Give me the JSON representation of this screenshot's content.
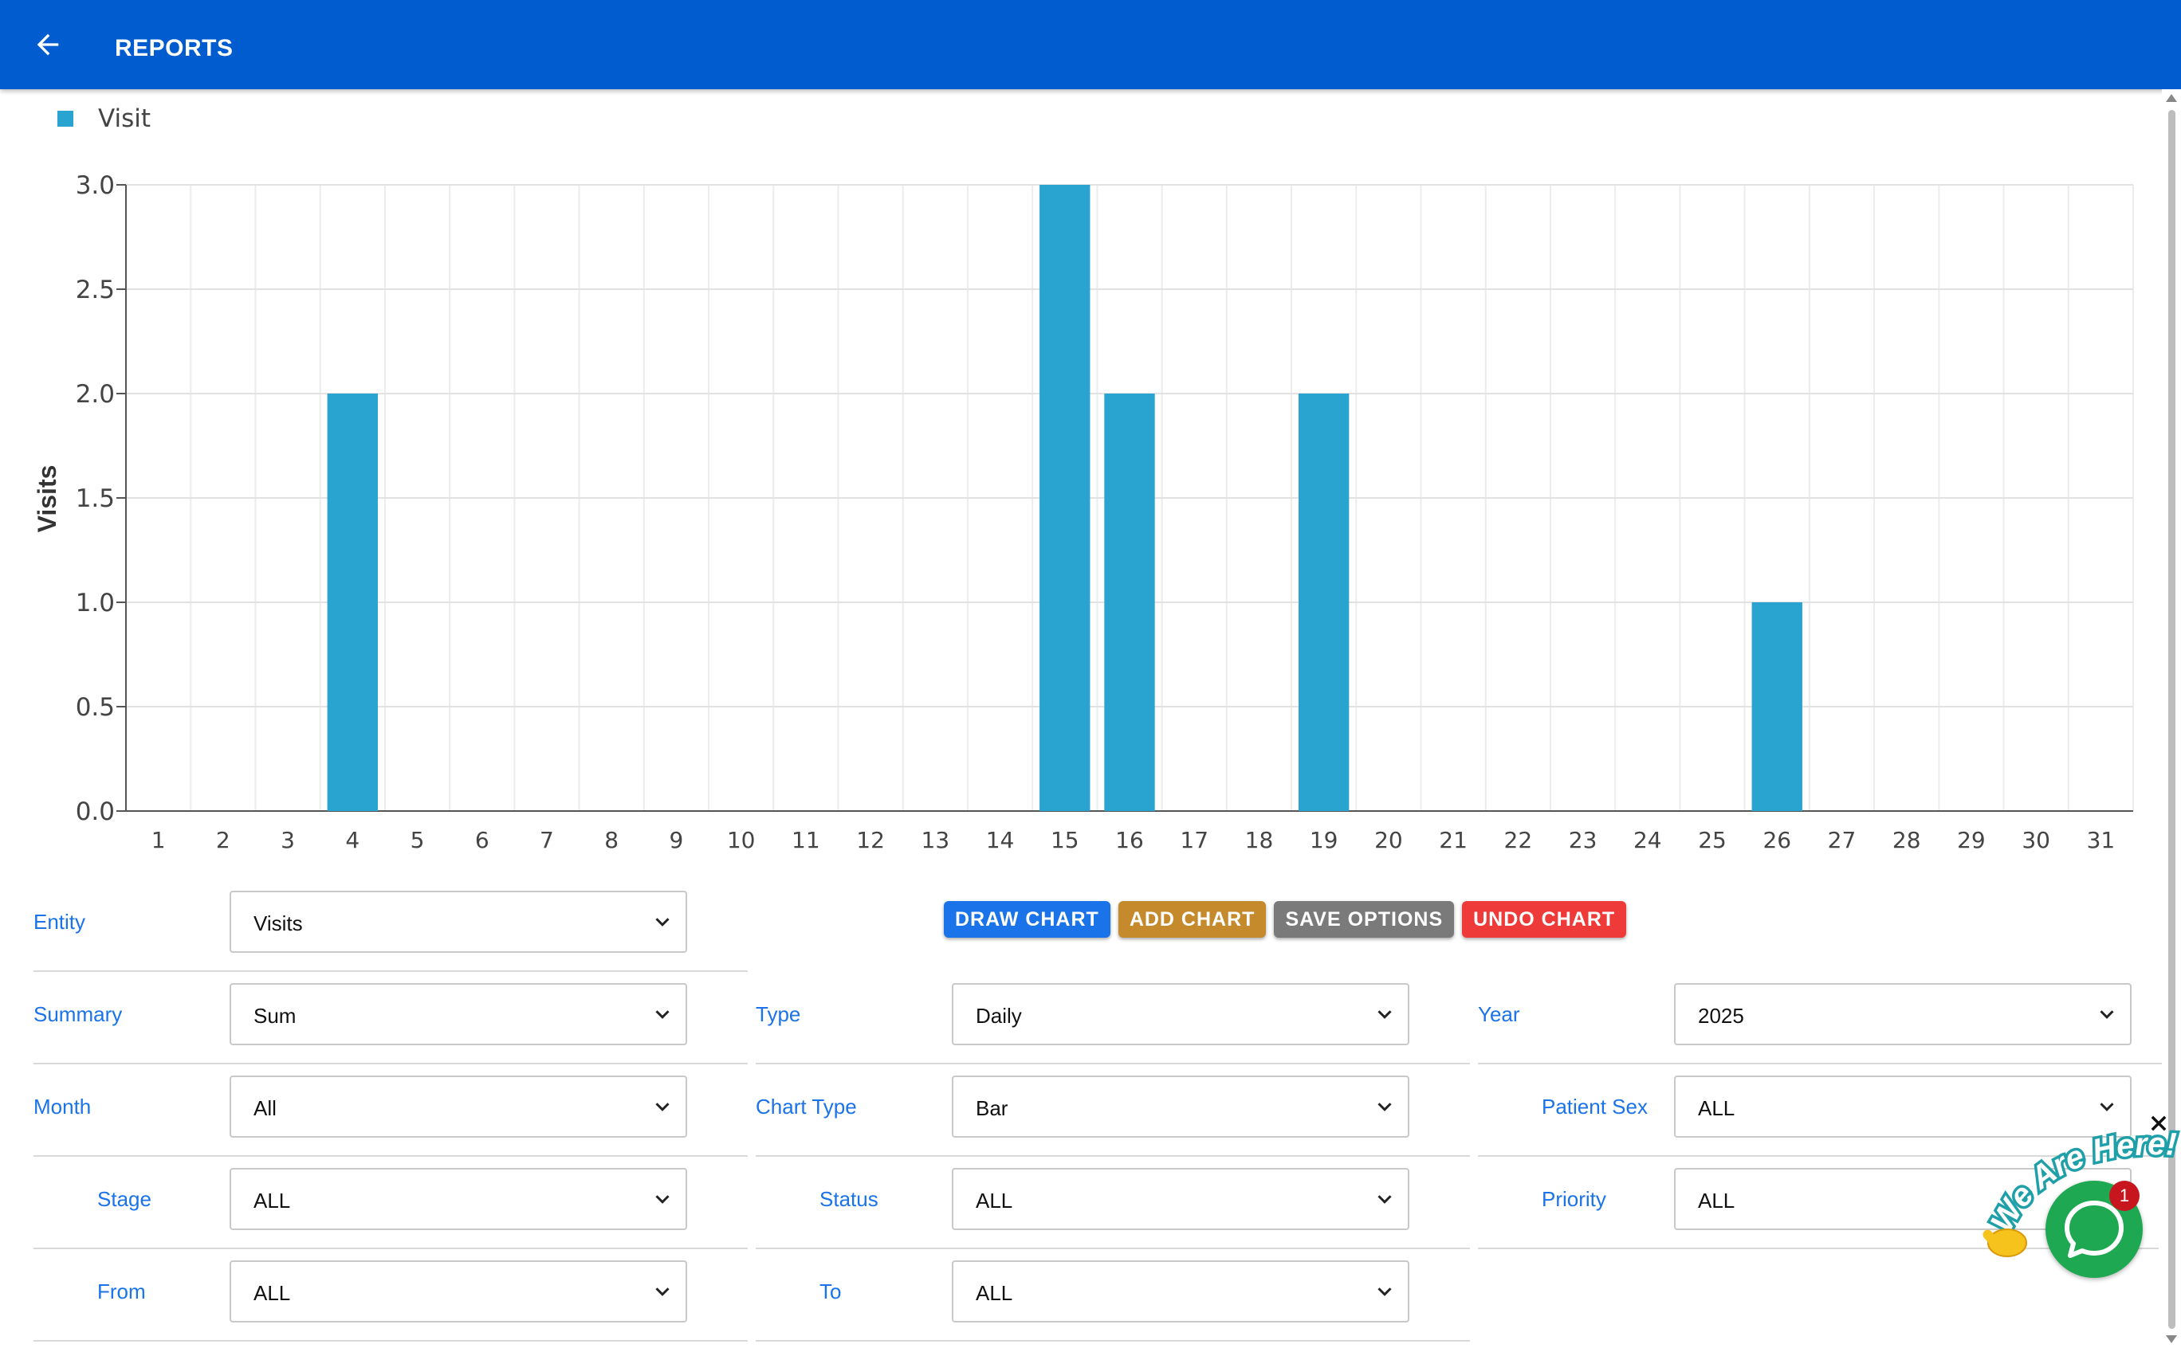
{
  "header": {
    "title": "REPORTS",
    "back_icon": "arrow-left-icon"
  },
  "chart_data": {
    "type": "bar",
    "legend": [
      "Visit"
    ],
    "ylabel": "Visits",
    "xlabel": "",
    "ylim": [
      0,
      3.0
    ],
    "y_ticks": [
      "0.0",
      "0.5",
      "1.0",
      "1.5",
      "2.0",
      "2.5",
      "3.0"
    ],
    "categories": [
      "1",
      "2",
      "3",
      "4",
      "5",
      "6",
      "7",
      "8",
      "9",
      "10",
      "11",
      "12",
      "13",
      "14",
      "15",
      "16",
      "17",
      "18",
      "19",
      "20",
      "21",
      "22",
      "23",
      "24",
      "25",
      "26",
      "27",
      "28",
      "29",
      "30",
      "31"
    ],
    "series": [
      {
        "name": "Visit",
        "values": [
          0,
          0,
          0,
          2,
          0,
          0,
          0,
          0,
          0,
          0,
          0,
          0,
          0,
          0,
          3,
          2,
          0,
          0,
          2,
          0,
          0,
          0,
          0,
          0,
          0,
          1,
          0,
          0,
          0,
          0,
          0
        ]
      }
    ],
    "color": "#29a3cf",
    "grid": true,
    "legend_position": "top-left"
  },
  "buttons": {
    "draw": "DRAW CHART",
    "add": "ADD CHART",
    "save": "SAVE OPTIONS",
    "undo": "UNDO CHART"
  },
  "fields": {
    "entity": {
      "label": "Entity",
      "value": "Visits"
    },
    "summary": {
      "label": "Summary",
      "value": "Sum"
    },
    "month": {
      "label": "Month",
      "value": "All"
    },
    "stage": {
      "label": "Stage",
      "value": "ALL"
    },
    "from": {
      "label": "From",
      "value": "ALL"
    },
    "type": {
      "label": "Type",
      "value": "Daily"
    },
    "chart_type": {
      "label": "Chart Type",
      "value": "Bar"
    },
    "status": {
      "label": "Status",
      "value": "ALL"
    },
    "to": {
      "label": "To",
      "value": "ALL"
    },
    "year": {
      "label": "Year",
      "value": "2025"
    },
    "patient_sex": {
      "label": "Patient Sex",
      "value": "ALL"
    },
    "priority": {
      "label": "Priority",
      "value": "ALL"
    }
  },
  "chat": {
    "badge": "1",
    "banner": "We Are Here!"
  }
}
